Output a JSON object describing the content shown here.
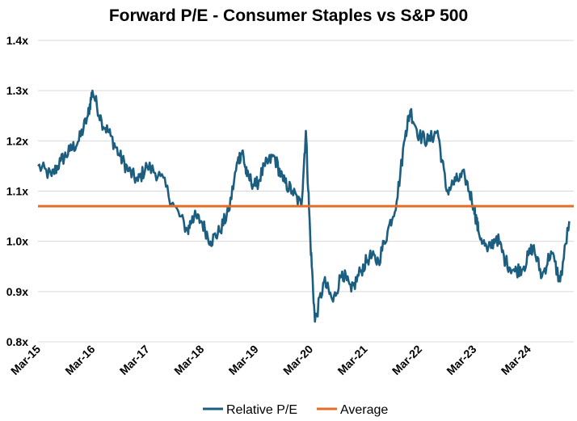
{
  "chart_data": {
    "type": "line",
    "title": "Forward P/E - Consumer Staples vs S&P 500",
    "xlabel": "",
    "ylabel": "",
    "x_range": [
      "2015-03-01",
      "2024-12-31"
    ],
    "xticks": [
      "Mar-15",
      "Mar-16",
      "Mar-17",
      "Mar-18",
      "Mar-19",
      "Mar-20",
      "Mar-21",
      "Mar-22",
      "Mar-23",
      "Mar-24"
    ],
    "ylim": [
      0.8,
      1.4
    ],
    "yticks": [
      "0.8x",
      "0.9x",
      "1.0x",
      "1.1x",
      "1.2x",
      "1.3x",
      "1.4x"
    ],
    "grid": "horizontal",
    "legend_position": "bottom",
    "series": [
      {
        "name": "Relative P/E",
        "color": "#1b5e80",
        "x": [
          "2015-03",
          "2015-06",
          "2015-08",
          "2015-10",
          "2015-12",
          "2016-02",
          "2016-03",
          "2016-05",
          "2016-07",
          "2016-09",
          "2016-11",
          "2017-01",
          "2017-03",
          "2017-06",
          "2017-09",
          "2017-12",
          "2018-01",
          "2018-03",
          "2018-05",
          "2018-07",
          "2018-09",
          "2018-11",
          "2018-12",
          "2019-01",
          "2019-03",
          "2019-05",
          "2019-07",
          "2019-09",
          "2019-11",
          "2020-01",
          "2020-02",
          "2020-03",
          "2020-04",
          "2020-06",
          "2020-08",
          "2020-10",
          "2020-12",
          "2021-02",
          "2021-04",
          "2021-06",
          "2021-08",
          "2021-10",
          "2021-12",
          "2022-01",
          "2022-03",
          "2022-05",
          "2022-07",
          "2022-09",
          "2022-11",
          "2023-01",
          "2023-03",
          "2023-04",
          "2023-06",
          "2023-08",
          "2023-10",
          "2023-12",
          "2024-02",
          "2024-04",
          "2024-06",
          "2024-08",
          "2024-10",
          "2024-12"
        ],
        "y": [
          1.15,
          1.13,
          1.16,
          1.18,
          1.2,
          1.25,
          1.3,
          1.24,
          1.21,
          1.17,
          1.14,
          1.12,
          1.15,
          1.13,
          1.07,
          1.02,
          1.05,
          1.04,
          1.0,
          1.02,
          1.06,
          1.16,
          1.18,
          1.13,
          1.11,
          1.15,
          1.17,
          1.12,
          1.1,
          1.07,
          1.22,
          1.0,
          0.84,
          0.92,
          0.88,
          0.94,
          0.9,
          0.94,
          0.97,
          0.96,
          1.02,
          1.08,
          1.22,
          1.26,
          1.21,
          1.2,
          1.22,
          1.1,
          1.12,
          1.13,
          1.07,
          1.02,
          0.98,
          1.01,
          0.96,
          0.94,
          0.95,
          0.99,
          0.93,
          0.98,
          0.92,
          1.04
        ]
      },
      {
        "name": "Average",
        "color": "#e46c24",
        "x": [
          "2015-03",
          "2024-12"
        ],
        "y": [
          1.07,
          1.07
        ]
      }
    ]
  }
}
